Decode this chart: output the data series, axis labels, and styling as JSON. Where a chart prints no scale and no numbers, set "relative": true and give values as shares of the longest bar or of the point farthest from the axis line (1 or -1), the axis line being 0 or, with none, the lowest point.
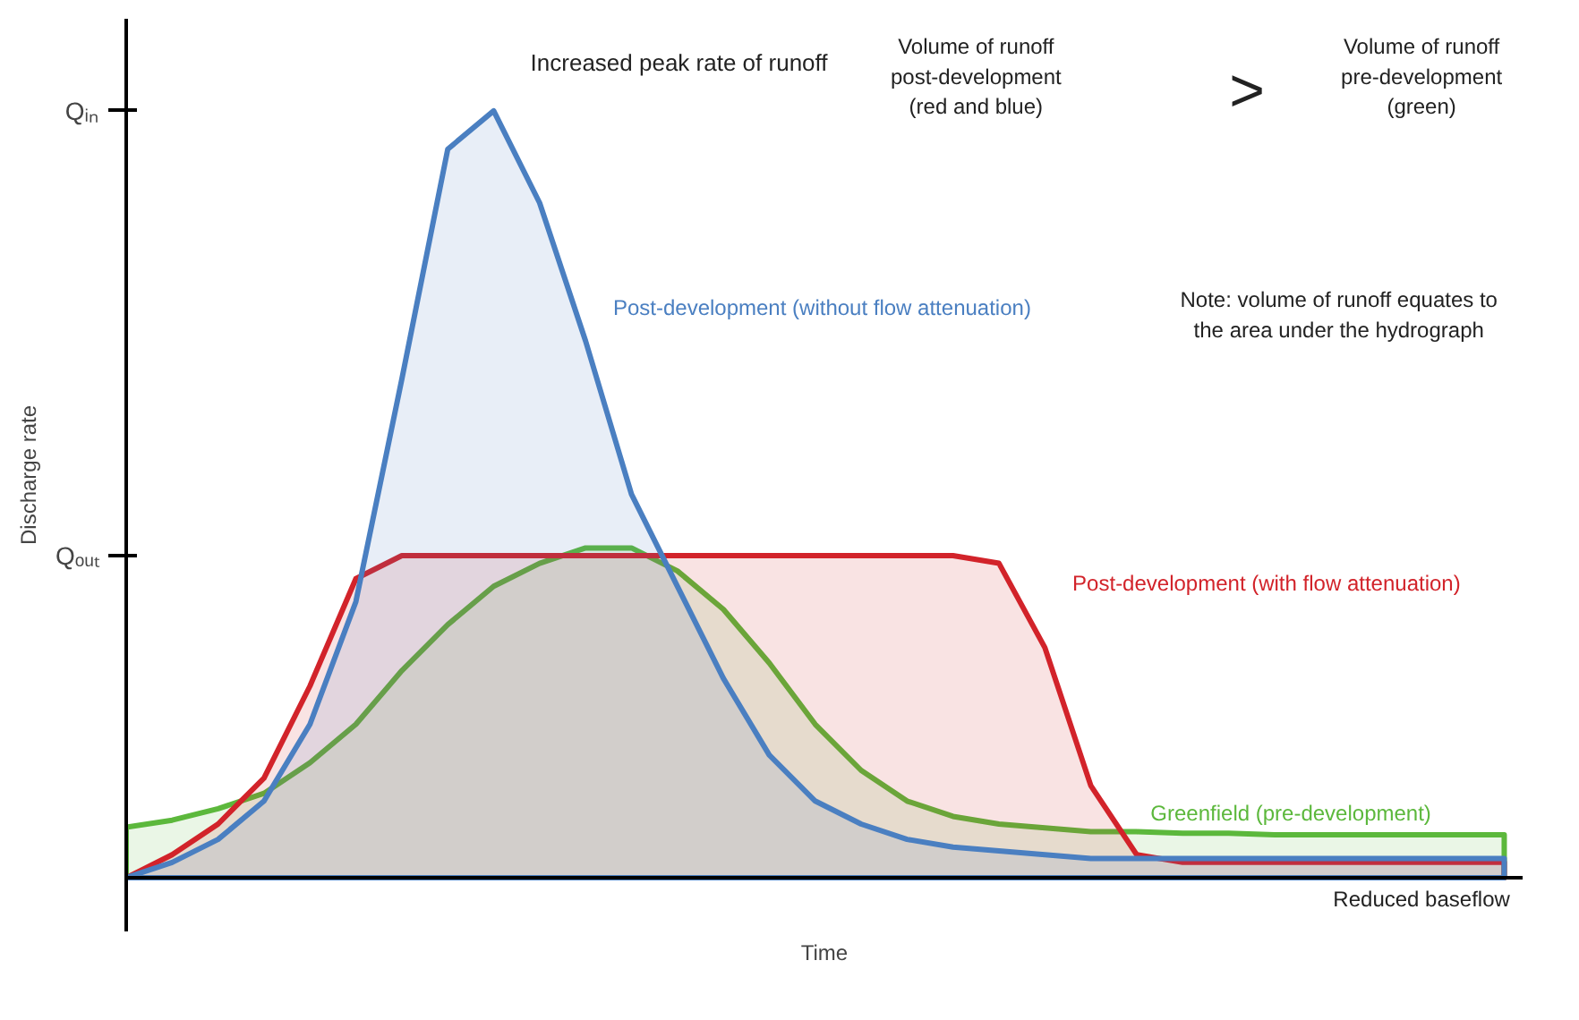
{
  "chart_data": {
    "type": "area",
    "relative": true,
    "xlabel": "Time",
    "ylabel": "Discharge rate",
    "legend": false,
    "categories": [
      null,
      null,
      null,
      null,
      null,
      null,
      null,
      null,
      null,
      null,
      null,
      null,
      null,
      null,
      null,
      null,
      null,
      null,
      null,
      null,
      null,
      null,
      null,
      null,
      null,
      null,
      null,
      null,
      null,
      null,
      null
    ],
    "series": [
      {
        "name": "Greenfield (pre-development)",
        "color": "#5cb83c",
        "values": [
          0.066,
          0.075,
          0.09,
          0.11,
          0.15,
          0.2,
          0.27,
          0.33,
          0.38,
          0.41,
          0.43,
          0.43,
          0.4,
          0.35,
          0.28,
          0.2,
          0.14,
          0.1,
          0.08,
          0.07,
          0.065,
          0.06,
          0.06,
          0.058,
          0.058,
          0.056,
          0.056,
          0.056,
          0.056,
          0.056,
          0.056
        ]
      },
      {
        "name": "Post-development (with flow attenuation)",
        "color": "#d2232a",
        "values": [
          0,
          0.03,
          0.07,
          0.13,
          0.25,
          0.39,
          0.42,
          0.42,
          0.42,
          0.42,
          0.42,
          0.42,
          0.42,
          0.42,
          0.42,
          0.42,
          0.42,
          0.42,
          0.42,
          0.41,
          0.3,
          0.12,
          0.03,
          0.02,
          0.02,
          0.02,
          0.02,
          0.02,
          0.02,
          0.02,
          0.02
        ]
      },
      {
        "name": "Post-development (without flow attenuation)",
        "color": "#4a7fc1",
        "values": [
          0,
          0.02,
          0.05,
          0.1,
          0.2,
          0.36,
          0.65,
          0.95,
          1.0,
          0.88,
          0.7,
          0.5,
          0.38,
          0.26,
          0.16,
          0.1,
          0.07,
          0.05,
          0.04,
          0.035,
          0.03,
          0.025,
          0.025,
          0.025,
          0.025,
          0.025,
          0.025,
          0.025,
          0.025,
          0.025,
          0.025
        ]
      }
    ],
    "annotations": [
      "Qᵢₙ",
      "Qₒᵤₜ",
      "Increased peak rate of runoff",
      "Volume of runoff\npost-development\n(red and blue)",
      ">",
      "Volume of runoff\npre-development\n(green)",
      "Note: volume of runoff equates to\nthe area under the hydrograph",
      "Reduced baseflow"
    ]
  }
}
